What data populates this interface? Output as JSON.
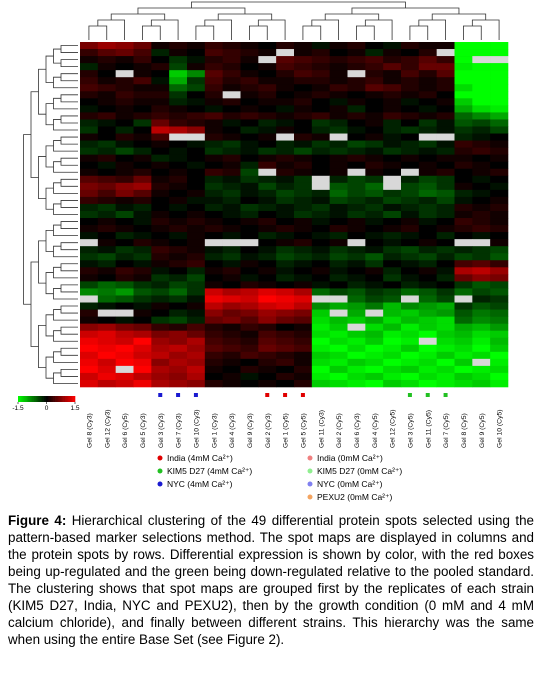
{
  "chart_data": {
    "type": "heatmap",
    "columns": [
      "Gel 8 (Cy3)",
      "Gel 12 (Cy3)",
      "Gel 6 (Cy5)",
      "Gel 5 (Cy3)",
      "Gel 3 (Cy3)",
      "Gel 7 (Cy3)",
      "Gel 10 (Cy3)",
      "Gel 1 (Cy3)",
      "Gel 4 (Cy3)",
      "Gel 9 (Cy3)",
      "Gel 2 (Cy3)",
      "Gel 1 (Cy5)",
      "Gel 5 (Cy5)",
      "Gel 11 (Cy3)",
      "Gel 2 (Cy5)",
      "Gel 6 (Cy3)",
      "Gel 4 (Cy5)",
      "Gel 12 (Cy5)",
      "Gel 3 (Cy5)",
      "Gel 11 (Cy5)",
      "Gel 7 (Cy5)",
      "Gel 8 (Cy5)",
      "Gel 9 (Cy5)",
      "Gel 10 (Cy5)"
    ],
    "column_markers": [
      null,
      null,
      null,
      null,
      "#1a1ad0",
      "#1a1ad0",
      "#1a1ad0",
      null,
      null,
      null,
      "#e00000",
      "#e00000",
      "#e00000",
      null,
      null,
      null,
      null,
      null,
      "#22c022",
      "#22c022",
      "#22c022",
      null,
      null,
      null
    ],
    "clim": [
      -1.5,
      1.5
    ],
    "colorbar_ticks": [
      -1.5,
      0,
      1.5
    ],
    "missing_color": "#d8d8d8",
    "matrix": [
      [
        0.7,
        0.9,
        0.8,
        0.6,
        0.1,
        0.2,
        0.1,
        0.3,
        0.2,
        0.1,
        0.0,
        0.2,
        0.1,
        -0.1,
        0.1,
        0.2,
        0.0,
        -0.1,
        0.2,
        0.1,
        0.1,
        -1.5,
        -1.5,
        -1.5
      ],
      [
        0.3,
        0.5,
        0.6,
        0.4,
        -0.2,
        0.1,
        0.0,
        0.4,
        0.3,
        0.2,
        0.1,
        null,
        0.1,
        0.2,
        0.0,
        0.1,
        -0.2,
        0.1,
        0.0,
        0.2,
        null,
        -1.5,
        -1.5,
        -1.5
      ],
      [
        0.1,
        0.2,
        0.1,
        0.3,
        0.0,
        -0.3,
        -0.1,
        0.2,
        0.3,
        0.1,
        null,
        0.5,
        0.4,
        0.3,
        0.2,
        0.3,
        0.4,
        0.2,
        0.3,
        0.5,
        0.3,
        -1.5,
        null,
        null
      ],
      [
        -0.2,
        0.1,
        0.0,
        0.1,
        0.2,
        -0.4,
        0.1,
        0.3,
        0.2,
        0.0,
        0.1,
        0.4,
        0.3,
        0.2,
        0.1,
        0.2,
        0.3,
        0.5,
        0.3,
        0.6,
        0.6,
        -1.4,
        -1.5,
        -1.5
      ],
      [
        0.2,
        0.0,
        null,
        0.1,
        0.0,
        -1.2,
        -0.8,
        0.5,
        0.3,
        0.1,
        0.0,
        0.2,
        0.4,
        0.3,
        0.1,
        null,
        0.2,
        0.1,
        0.4,
        0.2,
        0.5,
        -1.5,
        -1.5,
        -1.5
      ],
      [
        0.3,
        0.1,
        0.2,
        0.4,
        -0.1,
        -1.0,
        -0.3,
        0.4,
        0.2,
        0.3,
        0.1,
        0.1,
        0.2,
        0.2,
        0.1,
        0.2,
        0.3,
        0.1,
        0.2,
        0.1,
        0.2,
        -1.5,
        -1.5,
        -1.5
      ],
      [
        0.4,
        0.3,
        0.2,
        0.1,
        0.1,
        -0.6,
        -0.4,
        0.3,
        0.1,
        0.2,
        0.3,
        0.1,
        0.0,
        0.1,
        0.3,
        0.2,
        0.5,
        0.4,
        0.2,
        0.1,
        0.2,
        -1.3,
        -1.5,
        -1.5
      ],
      [
        0.2,
        0.1,
        0.3,
        0.2,
        0.2,
        -0.3,
        0.0,
        0.2,
        null,
        0.1,
        0.2,
        0.0,
        0.1,
        0.2,
        0.1,
        0.0,
        0.1,
        0.2,
        0.1,
        0.2,
        0.0,
        -1.5,
        -1.5,
        -1.5
      ],
      [
        0.0,
        0.1,
        0.2,
        0.1,
        0.1,
        -0.2,
        -0.1,
        0.1,
        0.2,
        0.0,
        0.1,
        0.1,
        0.2,
        0.0,
        -0.1,
        0.1,
        0.0,
        0.1,
        -0.1,
        0.0,
        0.1,
        -1.2,
        -1.5,
        -1.5
      ],
      [
        -0.1,
        0.0,
        0.1,
        0.0,
        0.2,
        0.1,
        0.0,
        -0.1,
        0.0,
        0.1,
        0.0,
        -0.1,
        0.1,
        0.0,
        0.1,
        -0.2,
        0.0,
        0.1,
        0.0,
        -0.1,
        0.0,
        -1.0,
        -1.3,
        -1.4
      ],
      [
        0.2,
        0.3,
        0.1,
        0.2,
        0.3,
        0.2,
        0.3,
        0.4,
        0.2,
        0.3,
        0.2,
        0.1,
        0.2,
        0.3,
        0.1,
        0.2,
        0.1,
        0.3,
        0.2,
        0.1,
        0.2,
        -0.6,
        -0.8,
        -1.0
      ],
      [
        -0.2,
        -0.1,
        0.0,
        -0.3,
        0.6,
        0.3,
        0.2,
        0.1,
        -0.1,
        0.0,
        -0.2,
        -0.1,
        0.0,
        -0.3,
        -0.2,
        0.0,
        0.1,
        -0.2,
        0.0,
        -0.3,
        -0.1,
        -0.5,
        -0.4,
        -0.6
      ],
      [
        -0.3,
        0.0,
        -0.2,
        0.0,
        1.1,
        1.0,
        0.8,
        0.1,
        0.0,
        -0.2,
        -0.1,
        0.1,
        0.0,
        -0.2,
        -0.3,
        -0.1,
        0.0,
        -0.2,
        -0.3,
        -0.2,
        -0.1,
        -0.3,
        -0.2,
        -0.4
      ],
      [
        0.1,
        0.0,
        0.2,
        0.1,
        0.4,
        null,
        null,
        0.2,
        0.1,
        0.0,
        0.1,
        null,
        0.2,
        0.1,
        null,
        0.0,
        0.1,
        -0.1,
        0.0,
        null,
        null,
        -0.2,
        -0.1,
        0.0
      ],
      [
        -0.2,
        -0.3,
        -0.1,
        0.0,
        0.1,
        0.0,
        -0.1,
        -0.2,
        -0.3,
        -0.1,
        0.0,
        -0.2,
        -0.1,
        -0.3,
        -0.2,
        -0.4,
        -0.3,
        -0.1,
        -0.2,
        -0.3,
        -0.1,
        0.3,
        0.2,
        0.1
      ],
      [
        -0.3,
        -0.2,
        -0.4,
        -0.2,
        0.0,
        -0.1,
        0.0,
        -0.3,
        -0.2,
        -0.1,
        -0.3,
        -0.2,
        -0.4,
        -0.2,
        -0.3,
        -0.2,
        -0.1,
        -0.3,
        -0.2,
        -0.1,
        -0.2,
        0.2,
        0.3,
        0.2
      ],
      [
        0.1,
        0.2,
        0.0,
        0.1,
        -0.2,
        -0.1,
        0.0,
        0.1,
        0.2,
        0.0,
        0.1,
        0.2,
        0.1,
        0.0,
        0.1,
        0.2,
        0.1,
        0.0,
        0.1,
        0.0,
        0.1,
        0.1,
        0.0,
        0.1
      ],
      [
        0.0,
        -0.1,
        0.1,
        0.0,
        0.1,
        0.0,
        -0.1,
        0.0,
        0.1,
        -0.2,
        0.3,
        0.1,
        0.2,
        0.0,
        0.1,
        0.0,
        0.2,
        0.1,
        0.0,
        0.1,
        0.0,
        0.2,
        0.1,
        0.0
      ],
      [
        0.1,
        0.0,
        0.1,
        0.2,
        0.0,
        0.1,
        0.0,
        0.3,
        0.2,
        -0.4,
        null,
        0.2,
        0.1,
        0.0,
        0.1,
        null,
        0.1,
        0.0,
        null,
        0.1,
        0.2,
        0.0,
        0.1,
        0.2
      ],
      [
        0.5,
        0.4,
        0.3,
        0.6,
        0.1,
        0.2,
        0.0,
        -0.2,
        -0.1,
        -0.3,
        -0.2,
        -0.1,
        -0.3,
        null,
        -0.2,
        -0.4,
        -0.3,
        null,
        -0.2,
        -0.4,
        -0.3,
        0.0,
        -0.1,
        0.0
      ],
      [
        0.7,
        0.6,
        0.8,
        0.9,
        0.2,
        0.1,
        0.0,
        -0.3,
        -0.2,
        -0.1,
        -0.4,
        -0.2,
        -0.3,
        null,
        -0.5,
        -0.4,
        -0.6,
        null,
        -0.4,
        -0.5,
        -0.3,
        0.1,
        0.0,
        -0.1
      ],
      [
        0.6,
        0.4,
        0.7,
        0.5,
        0.1,
        0.0,
        0.1,
        -0.2,
        -0.3,
        -0.1,
        -0.2,
        -0.4,
        -0.3,
        -0.2,
        -0.6,
        -0.4,
        -0.5,
        -0.3,
        -0.4,
        -0.6,
        -0.5,
        -0.2,
        -0.1,
        0.0
      ],
      [
        0.3,
        0.2,
        0.1,
        0.2,
        0.0,
        0.1,
        -0.1,
        -0.1,
        -0.2,
        0.0,
        -0.1,
        -0.3,
        -0.2,
        -0.1,
        -0.4,
        -0.3,
        -0.2,
        -0.4,
        -0.3,
        -0.2,
        -0.4,
        -0.1,
        0.0,
        0.1
      ],
      [
        -0.2,
        -0.3,
        -0.1,
        -0.2,
        0.0,
        -0.1,
        0.0,
        -0.2,
        -0.1,
        -0.3,
        -0.2,
        -0.1,
        -0.2,
        -0.3,
        -0.1,
        -0.2,
        -0.3,
        -0.1,
        -0.2,
        -0.3,
        -0.2,
        0.2,
        0.1,
        0.2
      ],
      [
        -0.3,
        -0.2,
        -0.4,
        -0.1,
        0.1,
        0.0,
        0.1,
        0.0,
        -0.1,
        -0.2,
        0.0,
        -0.1,
        -0.3,
        -0.2,
        -0.1,
        -0.3,
        -0.2,
        -0.4,
        -0.1,
        -0.3,
        -0.2,
        0.1,
        0.2,
        0.1
      ],
      [
        0.0,
        0.1,
        0.0,
        -0.1,
        0.2,
        0.1,
        0.2,
        0.1,
        0.0,
        0.1,
        0.2,
        0.0,
        0.1,
        -0.1,
        0.0,
        0.1,
        -0.1,
        0.0,
        0.1,
        -0.1,
        0.0,
        0.3,
        0.2,
        0.1
      ],
      [
        0.1,
        0.2,
        0.1,
        0.0,
        0.1,
        0.2,
        0.1,
        0.2,
        0.1,
        0.0,
        0.1,
        0.2,
        0.1,
        0.0,
        0.2,
        0.1,
        0.0,
        0.1,
        0.2,
        0.0,
        0.1,
        0.2,
        0.3,
        0.2
      ],
      [
        -0.1,
        0.0,
        -0.2,
        -0.1,
        0.0,
        -0.1,
        0.1,
        0.0,
        -0.1,
        0.0,
        -0.2,
        -0.1,
        0.0,
        -0.1,
        -0.2,
        0.0,
        -0.1,
        -0.2,
        -0.1,
        0.0,
        -0.2,
        0.0,
        -0.1,
        0.0
      ],
      [
        null,
        0.1,
        0.0,
        0.2,
        0.1,
        0.0,
        0.1,
        null,
        null,
        null,
        0.0,
        0.1,
        0.2,
        0.0,
        0.1,
        null,
        0.0,
        -0.1,
        0.0,
        0.1,
        0.0,
        null,
        null,
        0.1
      ],
      [
        -0.2,
        -0.1,
        -0.3,
        -0.2,
        0.3,
        0.2,
        0.1,
        -0.1,
        -0.2,
        0.0,
        -0.1,
        -0.3,
        -0.2,
        -0.1,
        -0.3,
        -0.2,
        -0.1,
        -0.3,
        -0.4,
        -0.2,
        -0.3,
        -0.2,
        -0.3,
        -0.4
      ],
      [
        -0.3,
        -0.4,
        -0.2,
        -0.3,
        0.2,
        0.1,
        0.2,
        -0.2,
        -0.3,
        -0.1,
        -0.2,
        -0.4,
        -0.3,
        -0.2,
        -0.4,
        -0.3,
        -0.5,
        -0.2,
        -0.3,
        -0.4,
        -0.2,
        -0.4,
        -0.3,
        -0.5
      ],
      [
        -0.1,
        -0.2,
        0.0,
        -0.1,
        0.1,
        0.2,
        0.3,
        0.0,
        -0.1,
        0.1,
        0.0,
        -0.2,
        -0.1,
        0.0,
        -0.2,
        -0.1,
        -0.3,
        0.0,
        -0.1,
        -0.2,
        0.0,
        0.4,
        0.5,
        0.3
      ],
      [
        0.2,
        0.1,
        0.3,
        0.2,
        -0.1,
        0.0,
        -0.2,
        0.1,
        0.2,
        0.0,
        0.1,
        -0.1,
        0.0,
        0.1,
        -0.1,
        0.0,
        0.1,
        -0.2,
        0.0,
        0.1,
        -0.1,
        1.0,
        1.1,
        0.9
      ],
      [
        0.1,
        0.0,
        0.2,
        0.1,
        -0.3,
        -0.2,
        -0.4,
        0.0,
        0.1,
        -0.1,
        0.0,
        -0.2,
        -0.1,
        0.0,
        -0.2,
        -0.1,
        0.0,
        -0.3,
        -0.1,
        0.0,
        -0.2,
        0.6,
        0.8,
        0.7
      ],
      [
        -0.4,
        -0.6,
        -0.5,
        -0.3,
        -0.2,
        -0.4,
        -0.3,
        0.1,
        0.0,
        0.2,
        0.1,
        0.0,
        0.1,
        -0.1,
        0.0,
        -0.2,
        -0.1,
        0.0,
        -0.2,
        -0.1,
        0.0,
        -0.3,
        -0.5,
        -0.4
      ],
      [
        -0.8,
        -0.7,
        -0.9,
        -0.5,
        -0.4,
        -0.6,
        -0.3,
        1.2,
        1.0,
        1.1,
        1.3,
        1.2,
        1.0,
        -0.6,
        -0.4,
        -0.5,
        -0.3,
        -0.4,
        -0.6,
        -0.5,
        -0.3,
        -0.6,
        -0.4,
        -0.5
      ],
      [
        null,
        -0.6,
        -0.5,
        -0.3,
        -0.2,
        -0.3,
        -0.1,
        1.4,
        1.3,
        1.2,
        1.5,
        1.4,
        1.3,
        null,
        null,
        -0.6,
        -0.4,
        -0.5,
        null,
        -0.6,
        -0.4,
        null,
        -0.2,
        -0.3
      ],
      [
        -0.2,
        -0.1,
        0.0,
        -0.1,
        0.1,
        0.0,
        0.1,
        1.1,
        0.9,
        1.0,
        1.2,
        1.3,
        1.1,
        -0.8,
        -1.0,
        -0.9,
        -0.7,
        -1.1,
        -0.8,
        -0.9,
        -1.0,
        -0.3,
        -0.5,
        -0.4
      ],
      [
        0.2,
        null,
        null,
        0.1,
        0.0,
        -0.2,
        -0.1,
        0.8,
        0.6,
        0.7,
        0.9,
        0.8,
        0.7,
        -1.2,
        null,
        -1.0,
        null,
        -1.1,
        -1.2,
        -1.0,
        -0.9,
        -0.5,
        -0.7,
        -0.6
      ],
      [
        0.1,
        0.0,
        -0.1,
        0.0,
        -0.3,
        -0.4,
        -0.2,
        0.6,
        0.7,
        0.5,
        0.8,
        0.6,
        0.5,
        -1.3,
        -1.1,
        -1.2,
        -1.0,
        -1.3,
        -1.1,
        -1.2,
        -1.3,
        -0.6,
        -0.8,
        -0.7
      ],
      [
        0.8,
        0.9,
        0.7,
        0.6,
        0.3,
        0.2,
        0.4,
        0.2,
        0.1,
        0.3,
        0.2,
        0.0,
        0.1,
        -1.4,
        -1.2,
        null,
        -1.3,
        -1.1,
        -1.4,
        -1.2,
        -1.3,
        -1.0,
        -1.1,
        -0.9
      ],
      [
        1.2,
        1.3,
        1.1,
        1.0,
        0.7,
        0.8,
        0.6,
        0.3,
        0.2,
        0.1,
        0.4,
        0.3,
        0.2,
        -1.3,
        -1.4,
        -1.2,
        -1.1,
        -1.4,
        -1.3,
        -1.5,
        -1.2,
        -1.1,
        -1.3,
        -1.2
      ],
      [
        1.4,
        1.3,
        1.2,
        1.5,
        0.9,
        0.8,
        1.0,
        0.4,
        0.3,
        0.2,
        0.5,
        0.4,
        0.3,
        -1.5,
        -1.3,
        -1.4,
        -1.2,
        -1.5,
        -1.4,
        null,
        -1.3,
        -1.2,
        -1.4,
        -1.1
      ],
      [
        1.5,
        1.4,
        1.5,
        1.3,
        1.0,
        1.1,
        0.9,
        0.5,
        0.4,
        0.3,
        0.6,
        0.5,
        0.4,
        -1.4,
        -1.5,
        -1.3,
        -1.5,
        -1.4,
        -1.2,
        -1.5,
        -1.4,
        -1.3,
        -1.5,
        -1.2
      ],
      [
        1.3,
        1.5,
        1.4,
        1.2,
        1.1,
        0.9,
        1.0,
        0.3,
        0.2,
        0.4,
        0.3,
        0.2,
        0.1,
        -1.2,
        -1.3,
        -1.5,
        -1.4,
        -1.3,
        -1.5,
        -1.4,
        -1.2,
        -1.4,
        -1.3,
        -1.5
      ],
      [
        1.4,
        1.2,
        1.5,
        1.4,
        0.8,
        1.0,
        0.9,
        0.2,
        0.1,
        0.0,
        0.2,
        0.3,
        0.1,
        -1.3,
        -1.4,
        -1.2,
        -1.3,
        -1.5,
        -1.4,
        -1.3,
        -1.5,
        -1.2,
        null,
        -1.4
      ],
      [
        1.5,
        1.3,
        null,
        1.5,
        1.0,
        0.9,
        1.1,
        0.1,
        0.0,
        0.2,
        0.1,
        0.0,
        0.2,
        -1.5,
        -1.2,
        -1.4,
        -1.5,
        -1.3,
        -1.2,
        -1.4,
        -1.3,
        -1.5,
        -1.4,
        -1.3
      ],
      [
        1.2,
        1.4,
        1.3,
        1.1,
        0.9,
        0.8,
        1.0,
        0.0,
        0.1,
        -0.1,
        0.0,
        0.2,
        0.1,
        -1.4,
        -1.5,
        -1.3,
        -1.2,
        -1.4,
        -1.5,
        -1.3,
        -1.4,
        -1.2,
        -1.3,
        -1.5
      ],
      [
        1.3,
        1.1,
        1.2,
        1.4,
        1.0,
        0.9,
        0.8,
        0.2,
        0.1,
        0.0,
        0.1,
        0.0,
        0.2,
        -1.2,
        -1.3,
        -1.4,
        -1.5,
        -1.2,
        -1.3,
        -1.5,
        -1.4,
        -1.3,
        -1.2,
        -1.4
      ]
    ],
    "legend": [
      {
        "label": "India (4mM Ca²⁺)",
        "color": "#e00000"
      },
      {
        "label": "KIM5 D27 (4mM Ca²⁺)",
        "color": "#22c022"
      },
      {
        "label": "NYC (4mM Ca²⁺)",
        "color": "#1a1ad0"
      },
      {
        "label": "India (0mM Ca²⁺)",
        "color": "#f08080"
      },
      {
        "label": "KIM5 D27 (0mM Ca²⁺)",
        "color": "#90ee90"
      },
      {
        "label": "NYC (0mM Ca²⁺)",
        "color": "#8080f0"
      },
      {
        "label": "PEXU2 (0mM Ca²⁺)",
        "color": "#f4a460"
      }
    ]
  },
  "caption": {
    "label": "Figure 4:",
    "text": "Hierarchical clustering of the 49 differential protein spots selected using the pattern-based marker selections method. The spot maps are displayed in columns and the protein spots by rows.  Differential expression is shown by color, with the red boxes being up-regulated and the green being down-regulated relative to the pooled standard. The clustering shows that spot maps are grouped first by the replicates of each strain (KIM5 D27, India, NYC and PEXU2), then by the growth condition (0 mM and 4 mM calcium chloride), and finally between different strains. This hierarchy was the same when using the entire Base Set (see Figure 2)."
  }
}
